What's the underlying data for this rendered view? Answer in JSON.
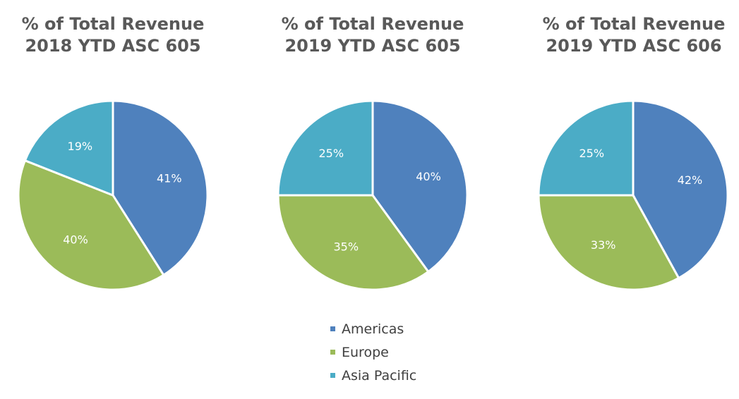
{
  "chart_data": [
    {
      "type": "pie",
      "title": "% of Total Revenue",
      "subtitle": "2018 YTD ASC 605",
      "categories": [
        "Americas",
        "Europe",
        "Asia Pacific"
      ],
      "values": [
        41,
        40,
        19
      ],
      "labels": [
        "41%",
        "40%",
        "19%"
      ]
    },
    {
      "type": "pie",
      "title": "% of Total Revenue",
      "subtitle": "2019 YTD ASC 605",
      "categories": [
        "Americas",
        "Europe",
        "Asia Pacific"
      ],
      "values": [
        40,
        35,
        25
      ],
      "labels": [
        "40%",
        "35%",
        "25%"
      ]
    },
    {
      "type": "pie",
      "title": "% of Total Revenue",
      "subtitle": "2019 YTD ASC 606",
      "categories": [
        "Americas",
        "Europe",
        "Asia Pacific"
      ],
      "values": [
        42,
        33,
        25
      ],
      "labels": [
        "42%",
        "33%",
        "25%"
      ]
    }
  ],
  "legend": {
    "placement": "bottom-center",
    "items": [
      {
        "label": "Americas",
        "color": "#4f81bd"
      },
      {
        "label": "Europe",
        "color": "#9bbb59"
      },
      {
        "label": "Asia Pacific",
        "color": "#4bacc6"
      }
    ]
  }
}
